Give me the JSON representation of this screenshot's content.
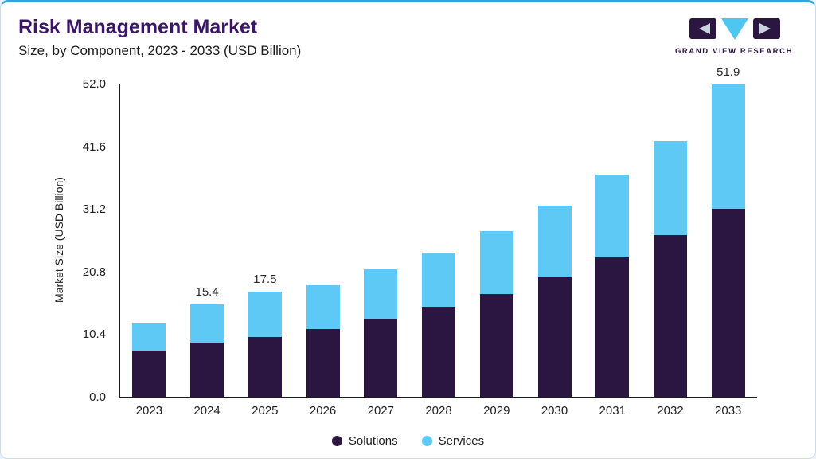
{
  "header": {
    "title": "Risk Management Market",
    "subtitle": "Size, by Component, 2023 - 2033 (USD Billion)"
  },
  "brand": {
    "name": "GRAND VIEW RESEARCH"
  },
  "chart_data": {
    "type": "bar",
    "stacked": true,
    "title": "Risk Management Market Size, by Component, 2023 - 2033 (USD Billion)",
    "categories": [
      "2023",
      "2024",
      "2025",
      "2026",
      "2027",
      "2028",
      "2029",
      "2030",
      "2031",
      "2032",
      "2033"
    ],
    "series": [
      {
        "name": "Solutions",
        "color": "#2B1642",
        "values": [
          7.7,
          9.0,
          9.9,
          11.2,
          13.0,
          15.0,
          17.1,
          19.8,
          23.2,
          26.8,
          31.2
        ]
      },
      {
        "name": "Services",
        "color": "#5EC9F4",
        "values": [
          4.6,
          6.4,
          7.6,
          7.3,
          8.2,
          9.0,
          10.4,
          12.0,
          13.7,
          15.7,
          20.7
        ]
      }
    ],
    "totals": [
      12.3,
      15.4,
      17.5,
      18.5,
      21.2,
      24.0,
      27.5,
      31.8,
      36.9,
      42.5,
      51.9
    ],
    "total_labels": [
      null,
      "15.4",
      "17.5",
      null,
      null,
      null,
      null,
      null,
      null,
      null,
      "51.9"
    ],
    "ylabel": "Market Size (USD Billion)",
    "ylim": [
      0,
      52
    ],
    "ytick_labels": [
      "0.0",
      "10.4",
      "20.8",
      "31.2",
      "41.6",
      "52.0"
    ],
    "grid": false,
    "legend_position": "bottom"
  },
  "colors": {
    "accent_top_border": "#2AA7DD",
    "title_text": "#3B1666",
    "solutions": "#2B1642",
    "services": "#5EC9F4",
    "axis_text": "#222222"
  }
}
